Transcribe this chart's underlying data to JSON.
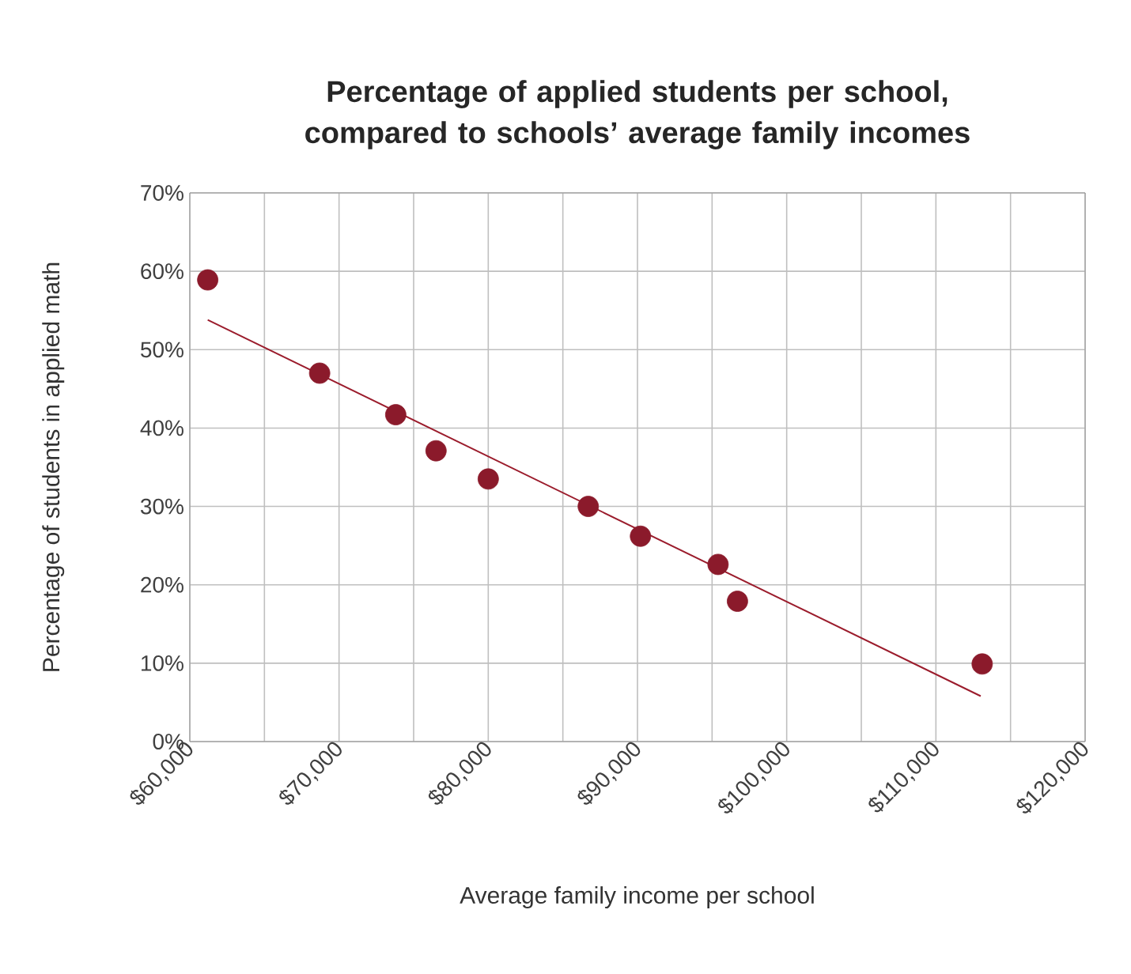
{
  "chart_data": {
    "type": "scatter",
    "title": "Percentage of applied students per school, compared to schools’ average family incomes",
    "xlabel": "Average family income per school",
    "ylabel": "Percentage of students in applied math",
    "series": [
      {
        "marker": "circle",
        "color": "#8b1a2b",
        "x": [
          61200,
          68700,
          73800,
          76500,
          80000,
          86700,
          90200,
          95400,
          96700,
          113100
        ],
        "values": [
          58.9,
          47.0,
          41.7,
          37.1,
          33.5,
          30.0,
          26.2,
          22.6,
          17.9,
          9.9
        ]
      },
      {
        "type": "line",
        "marker": "none",
        "color": "#9b1c2c",
        "x": [
          61200,
          113000
        ],
        "values": [
          53.8,
          5.8
        ]
      }
    ],
    "grid": true,
    "xlim": [
      60000,
      120000
    ],
    "ylim": [
      0,
      70
    ],
    "xticks": [
      {
        "value": 60000,
        "label": "$60,000"
      },
      {
        "value": 65000,
        "label": null
      },
      {
        "value": 70000,
        "label": "$70,000"
      },
      {
        "value": 75000,
        "label": null
      },
      {
        "value": 80000,
        "label": "$80,000"
      },
      {
        "value": 85000,
        "label": null
      },
      {
        "value": 90000,
        "label": "$90,000"
      },
      {
        "value": 95000,
        "label": null
      },
      {
        "value": 100000,
        "label": "$100,000"
      },
      {
        "value": 105000,
        "label": null
      },
      {
        "value": 110000,
        "label": "$110,000"
      },
      {
        "value": 115000,
        "label": null
      },
      {
        "value": 120000,
        "label": "$120,000"
      }
    ],
    "yticks": [
      {
        "value": 0,
        "label": "0%"
      },
      {
        "value": 10,
        "label": "10%"
      },
      {
        "value": 20,
        "label": "20%"
      },
      {
        "value": 30,
        "label": "30%"
      },
      {
        "value": 40,
        "label": "40%"
      },
      {
        "value": 50,
        "label": "50%"
      },
      {
        "value": 60,
        "label": "60%"
      },
      {
        "value": 70,
        "label": "70%"
      }
    ]
  }
}
